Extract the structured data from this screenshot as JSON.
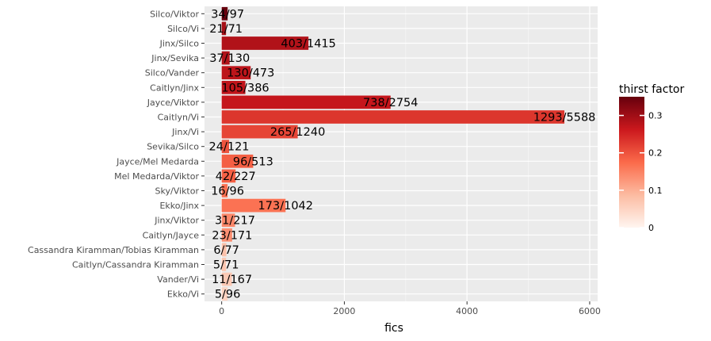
{
  "chart_data": {
    "type": "bar",
    "orientation": "horizontal",
    "xlabel": "fics",
    "ylabel": "",
    "xlim": [
      -280,
      6130
    ],
    "x_ticks": [
      0,
      2000,
      4000,
      6000
    ],
    "grid": true,
    "legend": {
      "title": "thirst factor",
      "placement": "right",
      "ticks": [
        0,
        0.1,
        0.2,
        0.3
      ],
      "range": [
        0,
        0.35
      ],
      "colors": [
        "#fff5f0",
        "#fcbba1",
        "#fb6a4a",
        "#cb181d",
        "#67000d"
      ]
    },
    "categories": [
      "Silco/Viktor",
      "Silco/Vi",
      "Jinx/Silco",
      "Jinx/Sevika",
      "Silco/Vander",
      "Caitlyn/Jinx",
      "Jayce/Viktor",
      "Caitlyn/Vi",
      "Jinx/Vi",
      "Sevika/Silco",
      "Jayce/Mel Medarda",
      "Mel Medarda/Viktor",
      "Sky/Viktor",
      "Ekko/Jinx",
      "Jinx/Viktor",
      "Caitlyn/Jayce",
      "Cassandra Kiramman/Tobias Kiramman",
      "Caitlyn/Cassandra Kiramman",
      "Vander/Vi",
      "Ekko/Vi"
    ],
    "values": [
      97,
      71,
      1415,
      130,
      473,
      386,
      2754,
      5588,
      1240,
      121,
      513,
      227,
      96,
      1042,
      217,
      171,
      77,
      71,
      167,
      96
    ],
    "numerators": [
      34,
      21,
      403,
      37,
      130,
      105,
      738,
      1293,
      265,
      24,
      96,
      42,
      16,
      173,
      31,
      23,
      6,
      5,
      11,
      5
    ],
    "labels": [
      "34/97",
      "21/71",
      "403/1415",
      "37/130",
      "130/473",
      "105/386",
      "738/2754",
      "1293/5588",
      "265/1240",
      "24/121",
      "96/513",
      "42/227",
      "16/96",
      "173/1042",
      "31/217",
      "23/171",
      "6/77",
      "5/71",
      "11/167",
      "5/96"
    ],
    "thirst_factor": [
      0.351,
      0.296,
      0.285,
      0.285,
      0.275,
      0.272,
      0.268,
      0.231,
      0.214,
      0.198,
      0.187,
      0.185,
      0.167,
      0.166,
      0.143,
      0.135,
      0.078,
      0.07,
      0.066,
      0.052
    ]
  }
}
